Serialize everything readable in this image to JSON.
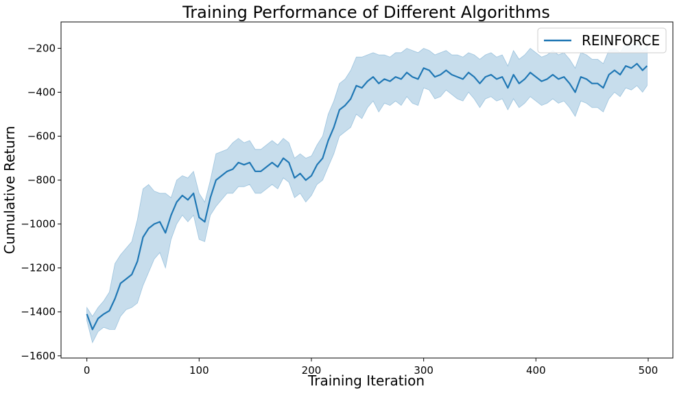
{
  "chart_data": {
    "type": "line",
    "title": "Training Performance of Different Algorithms",
    "xlabel": "Training Iteration",
    "ylabel": "Cumulative Return",
    "xlim": [
      -23,
      522
    ],
    "ylim": [
      -1610,
      -80
    ],
    "xticks": [
      0,
      100,
      200,
      300,
      400,
      500
    ],
    "yticks": [
      -1600,
      -1400,
      -1200,
      -1000,
      -800,
      -600,
      -400,
      -200
    ],
    "grid": false,
    "legend_position": "top-right",
    "colors": {
      "line": "#1f77b4",
      "band": "#1f77b4"
    },
    "series": [
      {
        "name": "REINFORCE",
        "x": [
          0,
          5,
          10,
          15,
          20,
          25,
          30,
          35,
          40,
          45,
          50,
          55,
          60,
          65,
          70,
          75,
          80,
          85,
          90,
          95,
          100,
          105,
          110,
          115,
          120,
          125,
          130,
          135,
          140,
          145,
          150,
          155,
          160,
          165,
          170,
          175,
          180,
          185,
          190,
          195,
          200,
          205,
          210,
          215,
          220,
          225,
          230,
          235,
          240,
          245,
          250,
          255,
          260,
          265,
          270,
          275,
          280,
          285,
          290,
          295,
          300,
          305,
          310,
          315,
          320,
          325,
          330,
          335,
          340,
          345,
          350,
          355,
          360,
          365,
          370,
          375,
          380,
          385,
          390,
          395,
          400,
          405,
          410,
          415,
          420,
          425,
          430,
          435,
          440,
          445,
          450,
          455,
          460,
          465,
          470,
          475,
          480,
          485,
          490,
          495,
          499
        ],
        "mean": [
          -1410,
          -1480,
          -1430,
          -1410,
          -1395,
          -1340,
          -1270,
          -1250,
          -1230,
          -1170,
          -1060,
          -1020,
          -1000,
          -990,
          -1040,
          -960,
          -900,
          -870,
          -890,
          -860,
          -970,
          -990,
          -880,
          -800,
          -780,
          -760,
          -750,
          -720,
          -730,
          -720,
          -760,
          -760,
          -740,
          -720,
          -740,
          -700,
          -720,
          -790,
          -770,
          -800,
          -780,
          -730,
          -700,
          -620,
          -560,
          -480,
          -460,
          -430,
          -370,
          -380,
          -350,
          -330,
          -360,
          -340,
          -350,
          -330,
          -340,
          -310,
          -330,
          -340,
          -290,
          -300,
          -330,
          -320,
          -300,
          -320,
          -330,
          -340,
          -310,
          -330,
          -360,
          -330,
          -320,
          -340,
          -330,
          -380,
          -320,
          -360,
          -340,
          -310,
          -330,
          -350,
          -340,
          -320,
          -340,
          -330,
          -360,
          -400,
          -330,
          -340,
          -360,
          -360,
          -380,
          -320,
          -300,
          -320,
          -280,
          -290,
          -270,
          -300,
          -280
        ],
        "upper": [
          -1380,
          -1420,
          -1380,
          -1350,
          -1310,
          -1180,
          -1140,
          -1110,
          -1080,
          -980,
          -840,
          -820,
          -850,
          -860,
          -860,
          -880,
          -800,
          -780,
          -790,
          -760,
          -860,
          -900,
          -800,
          -680,
          -670,
          -660,
          -630,
          -610,
          -630,
          -620,
          -660,
          -660,
          -640,
          -620,
          -640,
          -610,
          -630,
          -700,
          -680,
          -700,
          -690,
          -640,
          -600,
          -500,
          -440,
          -360,
          -340,
          -300,
          -240,
          -240,
          -230,
          -220,
          -230,
          -230,
          -240,
          -220,
          -220,
          -200,
          -210,
          -220,
          -200,
          -210,
          -230,
          -220,
          -210,
          -230,
          -230,
          -240,
          -220,
          -230,
          -250,
          -230,
          -220,
          -240,
          -230,
          -280,
          -210,
          -250,
          -230,
          -200,
          -220,
          -240,
          -230,
          -210,
          -230,
          -220,
          -250,
          -290,
          -220,
          -230,
          -250,
          -250,
          -270,
          -210,
          -200,
          -220,
          -180,
          -190,
          -170,
          -210,
          -190
        ],
        "lower": [
          -1440,
          -1540,
          -1490,
          -1470,
          -1480,
          -1480,
          -1420,
          -1390,
          -1380,
          -1360,
          -1280,
          -1220,
          -1160,
          -1130,
          -1200,
          -1070,
          -1000,
          -960,
          -990,
          -960,
          -1070,
          -1080,
          -960,
          -920,
          -890,
          -860,
          -860,
          -830,
          -830,
          -820,
          -860,
          -860,
          -840,
          -820,
          -840,
          -790,
          -810,
          -880,
          -860,
          -900,
          -870,
          -820,
          -800,
          -740,
          -680,
          -600,
          -580,
          -560,
          -500,
          -520,
          -470,
          -440,
          -490,
          -450,
          -460,
          -440,
          -460,
          -420,
          -450,
          -460,
          -380,
          -390,
          -430,
          -420,
          -390,
          -410,
          -430,
          -440,
          -400,
          -430,
          -470,
          -430,
          -420,
          -440,
          -430,
          -480,
          -430,
          -470,
          -450,
          -420,
          -440,
          -460,
          -450,
          -430,
          -450,
          -440,
          -470,
          -510,
          -440,
          -450,
          -470,
          -470,
          -490,
          -430,
          -400,
          -420,
          -380,
          -390,
          -370,
          -400,
          -370
        ]
      }
    ]
  }
}
